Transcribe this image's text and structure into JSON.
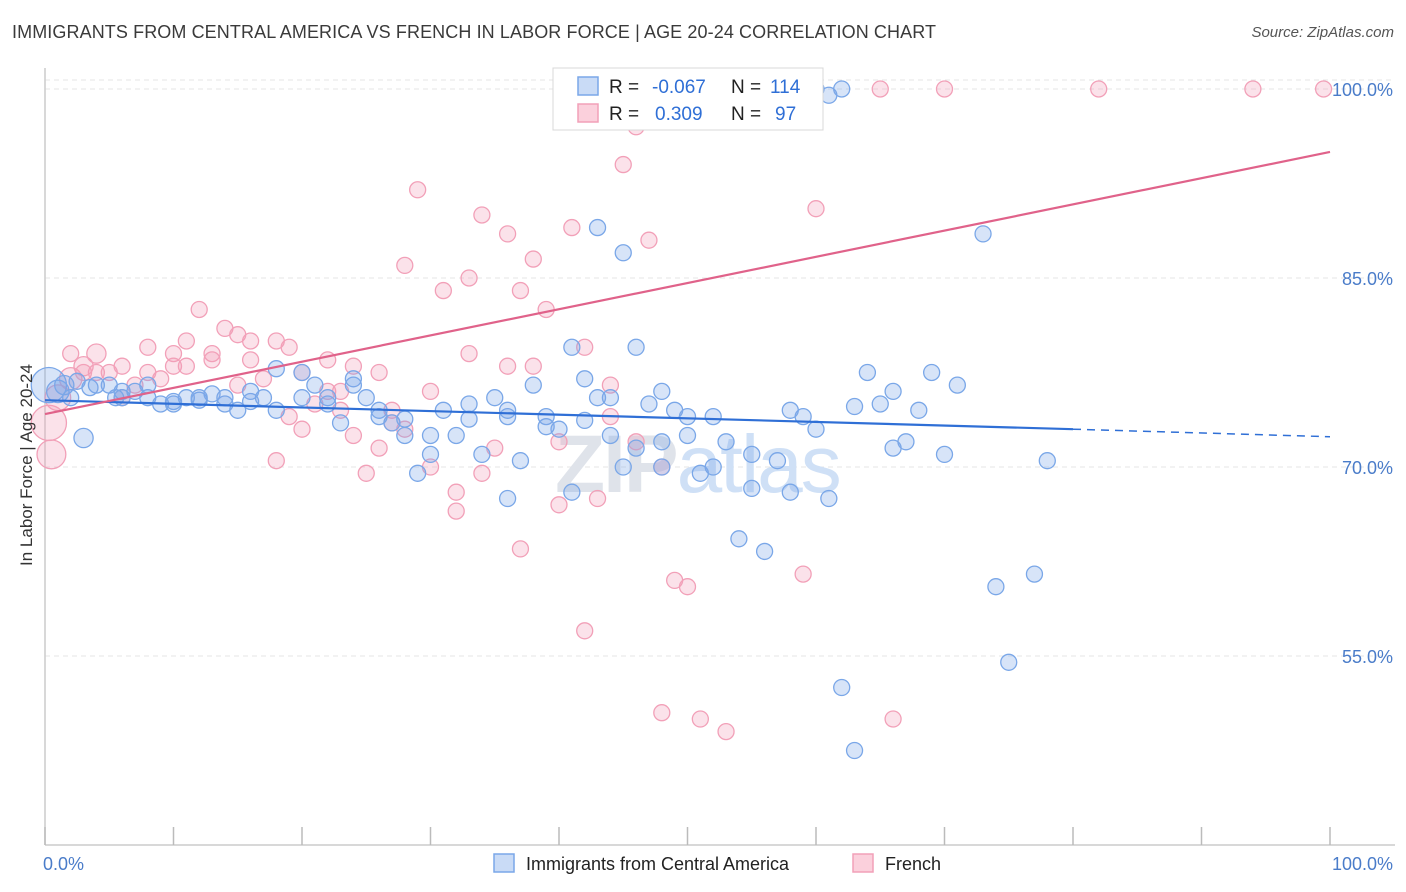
{
  "title": "IMMIGRANTS FROM CENTRAL AMERICA VS FRENCH IN LABOR FORCE | AGE 20-24 CORRELATION CHART",
  "source": "Source: ZipAtlas.com",
  "watermark": "ZIPatlas",
  "stats_legend": [
    {
      "r_label": "R =",
      "r_value": "-0.067",
      "n_label": "N =",
      "n_value": "114",
      "color": "#7aa7e8"
    },
    {
      "r_label": "R =",
      "r_value": "0.309",
      "n_label": "N =",
      "n_value": "97",
      "color": "#f2a0b8"
    }
  ],
  "chart_data": {
    "type": "scatter",
    "title": "IMMIGRANTS FROM CENTRAL AMERICA VS FRENCH IN LABOR FORCE | AGE 20-24 CORRELATION CHART",
    "xlabel": "",
    "ylabel": "In Labor Force | Age 20-24",
    "xlim": [
      0,
      100
    ],
    "ylim": [
      40,
      102
    ],
    "x_tick_labels": [
      "0.0%",
      "100.0%"
    ],
    "y_ticks": [
      55,
      70,
      85,
      100
    ],
    "y_tick_labels": [
      "55.0%",
      "70.0%",
      "85.0%",
      "100.0%"
    ],
    "grid": true,
    "legend_position": "bottom",
    "series": [
      {
        "name": "Immigrants from Central America",
        "color": "#7aa7e8",
        "line_color": "#2f6fd6",
        "trend": {
          "x": [
            0,
            80
          ],
          "y": [
            75.3,
            73.0
          ],
          "dashed_to": [
            100,
            72.4
          ]
        },
        "points": [
          [
            0.3,
            76.5,
            2.2
          ],
          [
            1,
            76,
            1.4
          ],
          [
            1.5,
            76.5,
            1.2
          ],
          [
            2,
            75.5,
            1
          ],
          [
            2.5,
            76.8,
            1
          ],
          [
            3.5,
            76.3,
            1
          ],
          [
            5,
            76.5,
            1
          ],
          [
            5.5,
            75.5,
            1
          ],
          [
            6,
            76,
            1
          ],
          [
            7,
            76,
            1
          ],
          [
            8,
            75.5,
            1
          ],
          [
            9,
            75,
            1
          ],
          [
            10,
            75.2,
            1
          ],
          [
            11,
            75.5,
            1
          ],
          [
            12,
            75.3,
            1
          ],
          [
            13,
            75.8,
            1
          ],
          [
            14,
            75,
            1
          ],
          [
            15,
            74.5,
            1
          ],
          [
            16,
            75.2,
            1
          ],
          [
            17,
            75.5,
            1
          ],
          [
            3,
            72.3,
            1.2
          ],
          [
            18,
            77.8,
            1
          ],
          [
            20,
            77.5,
            1
          ],
          [
            21,
            76.5,
            1
          ],
          [
            22,
            75.5,
            1
          ],
          [
            23,
            73.5,
            1
          ],
          [
            24,
            77,
            1
          ],
          [
            25,
            75.5,
            1
          ],
          [
            26,
            74,
            1
          ],
          [
            27,
            73.5,
            1
          ],
          [
            28,
            72.5,
            1
          ],
          [
            29,
            69.5,
            1
          ],
          [
            30,
            71,
            1
          ],
          [
            31,
            74.5,
            1
          ],
          [
            32,
            72.5,
            1
          ],
          [
            33,
            75,
            1
          ],
          [
            34,
            71,
            1
          ],
          [
            35,
            75.5,
            1
          ],
          [
            36,
            74,
            1
          ],
          [
            37,
            70.5,
            1
          ],
          [
            38,
            76.5,
            1
          ],
          [
            39,
            74,
            1
          ],
          [
            40,
            73,
            1
          ],
          [
            41,
            68,
            1
          ],
          [
            42,
            77,
            1
          ],
          [
            43,
            75.5,
            1
          ],
          [
            44,
            72.5,
            1
          ],
          [
            45,
            70,
            1
          ],
          [
            46,
            71.5,
            1
          ],
          [
            47,
            75,
            1
          ],
          [
            48,
            76,
            1
          ],
          [
            49,
            74.5,
            1
          ],
          [
            50,
            72.5,
            1
          ],
          [
            51,
            69.5,
            1
          ],
          [
            52,
            74,
            1
          ],
          [
            53,
            72,
            1
          ],
          [
            54,
            64.3,
            1
          ],
          [
            55,
            71,
            1
          ],
          [
            56,
            63.3,
            1
          ],
          [
            57,
            70.5,
            1
          ],
          [
            58,
            68,
            1
          ],
          [
            59,
            74,
            1
          ],
          [
            60,
            73,
            1
          ],
          [
            61,
            67.5,
            1
          ],
          [
            62,
            52.5,
            1
          ],
          [
            63,
            47.5,
            1
          ],
          [
            64,
            77.5,
            1
          ],
          [
            65,
            75,
            1
          ],
          [
            66,
            76,
            1
          ],
          [
            67,
            72,
            1
          ],
          [
            68,
            74.5,
            1
          ],
          [
            69,
            77.5,
            1
          ],
          [
            70,
            71,
            1
          ],
          [
            71,
            76.5,
            1
          ],
          [
            73,
            88.5,
            1
          ],
          [
            74,
            60.5,
            1
          ],
          [
            75,
            54.5,
            1
          ],
          [
            77,
            61.5,
            1
          ],
          [
            78,
            70.5,
            1
          ],
          [
            41,
            79.5,
            1
          ],
          [
            43,
            89,
            1
          ],
          [
            45,
            87,
            1
          ],
          [
            50,
            74,
            1
          ],
          [
            52,
            70,
            1
          ],
          [
            46,
            79.5,
            1
          ],
          [
            60,
            100,
            1
          ],
          [
            62,
            100,
            1
          ],
          [
            47,
            100,
            1
          ],
          [
            61,
            99.5,
            1
          ],
          [
            4,
            76.5,
            1
          ],
          [
            6,
            75.5,
            1
          ],
          [
            8,
            76.5,
            1
          ],
          [
            10,
            75,
            1
          ],
          [
            12,
            75.5,
            1
          ],
          [
            14,
            75.5,
            1
          ],
          [
            16,
            76,
            1
          ],
          [
            18,
            74.5,
            1
          ],
          [
            20,
            75.5,
            1
          ],
          [
            22,
            75,
            1
          ],
          [
            24,
            76.5,
            1
          ],
          [
            26,
            74.5,
            1
          ],
          [
            28,
            73.8,
            1
          ],
          [
            30,
            72.5,
            1
          ],
          [
            33,
            73.8,
            1
          ],
          [
            36,
            74.5,
            1
          ],
          [
            39,
            73.2,
            1
          ],
          [
            42,
            73.7,
            1
          ],
          [
            44,
            75.5,
            1
          ],
          [
            48,
            72,
            1
          ],
          [
            36,
            67.5,
            1
          ],
          [
            55,
            68.3,
            1
          ],
          [
            58,
            74.5,
            1
          ],
          [
            63,
            74.8,
            1
          ],
          [
            66,
            71.5,
            1
          ],
          [
            48,
            70,
            1
          ]
        ]
      },
      {
        "name": "French",
        "color": "#f2a0b8",
        "line_color": "#e0628a",
        "trend": {
          "x": [
            0,
            100
          ],
          "y": [
            74.2,
            95.0
          ]
        },
        "points": [
          [
            0.3,
            73.5,
            2.2
          ],
          [
            0.5,
            71,
            1.8
          ],
          [
            1,
            75.5,
            1.6
          ],
          [
            2,
            77,
            1.4
          ],
          [
            3,
            78,
            1.2
          ],
          [
            4,
            79,
            1.2
          ],
          [
            5,
            77.5,
            1
          ],
          [
            6,
            78,
            1
          ],
          [
            7,
            76.5,
            1
          ],
          [
            8,
            79.5,
            1
          ],
          [
            9,
            77,
            1
          ],
          [
            10,
            79,
            1
          ],
          [
            11,
            80,
            1
          ],
          [
            12,
            82.5,
            1
          ],
          [
            13,
            79,
            1
          ],
          [
            14,
            81,
            1
          ],
          [
            15,
            80.5,
            1
          ],
          [
            16,
            78.5,
            1
          ],
          [
            17,
            77,
            1
          ],
          [
            18,
            80,
            1
          ],
          [
            19,
            74,
            1
          ],
          [
            20,
            77.5,
            1
          ],
          [
            21,
            75,
            1
          ],
          [
            22,
            78.5,
            1
          ],
          [
            23,
            74.5,
            1
          ],
          [
            24,
            72.5,
            1
          ],
          [
            25,
            69.5,
            1
          ],
          [
            26,
            71.5,
            1
          ],
          [
            27,
            74.5,
            1
          ],
          [
            28,
            86,
            1
          ],
          [
            29,
            92,
            1
          ],
          [
            30,
            70,
            1
          ],
          [
            31,
            84,
            1
          ],
          [
            32,
            68,
            1
          ],
          [
            33,
            85,
            1
          ],
          [
            34,
            90,
            1
          ],
          [
            35,
            71.5,
            1
          ],
          [
            36,
            88.5,
            1
          ],
          [
            37,
            63.5,
            1
          ],
          [
            38,
            86.5,
            1
          ],
          [
            39,
            82.5,
            1
          ],
          [
            40,
            67,
            1
          ],
          [
            41,
            89,
            1
          ],
          [
            42,
            57,
            1
          ],
          [
            43,
            67.5,
            1
          ],
          [
            44,
            74,
            1
          ],
          [
            45,
            94,
            1
          ],
          [
            46,
            97,
            1
          ],
          [
            47,
            88,
            1
          ],
          [
            48,
            70,
            1
          ],
          [
            49,
            61,
            1
          ],
          [
            50,
            60.5,
            1
          ],
          [
            51,
            50,
            1
          ],
          [
            52,
            98,
            1
          ],
          [
            53,
            49,
            1
          ],
          [
            54,
            100,
            1
          ],
          [
            55,
            100,
            1
          ],
          [
            56,
            99.5,
            1
          ],
          [
            57,
            100,
            1
          ],
          [
            58,
            100,
            1
          ],
          [
            59,
            61.5,
            1
          ],
          [
            60,
            90.5,
            1
          ],
          [
            65,
            100,
            1
          ],
          [
            70,
            100,
            1
          ],
          [
            82,
            100,
            1
          ],
          [
            94,
            100,
            1
          ],
          [
            99.5,
            100,
            1
          ],
          [
            66,
            50,
            1
          ],
          [
            22,
            76,
            1
          ],
          [
            24,
            78,
            1
          ],
          [
            26,
            77.5,
            1
          ],
          [
            30,
            76,
            1
          ],
          [
            33,
            79,
            1
          ],
          [
            36,
            78,
            1
          ],
          [
            20,
            73,
            1
          ],
          [
            18,
            70.5,
            1
          ],
          [
            28,
            73,
            1
          ],
          [
            32,
            66.5,
            1
          ],
          [
            38,
            78,
            1
          ],
          [
            44,
            76.5,
            1
          ],
          [
            48,
            50.5,
            1
          ],
          [
            4,
            77.5,
            1
          ],
          [
            6,
            75.5,
            1
          ],
          [
            8,
            77.5,
            1
          ],
          [
            10,
            78,
            1
          ],
          [
            13,
            78.5,
            1
          ],
          [
            16,
            80,
            1
          ],
          [
            19,
            79.5,
            1
          ],
          [
            3,
            77.5,
            1
          ],
          [
            2,
            79,
            1
          ],
          [
            37,
            84,
            1
          ],
          [
            40,
            72,
            1
          ],
          [
            42,
            79.5,
            1
          ],
          [
            46,
            72,
            1
          ],
          [
            34,
            69.5,
            1
          ],
          [
            27,
            73.5,
            1
          ],
          [
            15,
            76.5,
            1
          ],
          [
            11,
            78,
            1
          ],
          [
            23,
            76,
            1
          ]
        ]
      }
    ]
  },
  "legend": [
    {
      "label": "Immigrants from Central America",
      "color": "#7aa7e8"
    },
    {
      "label": "French",
      "color": "#f2a0b8"
    }
  ]
}
